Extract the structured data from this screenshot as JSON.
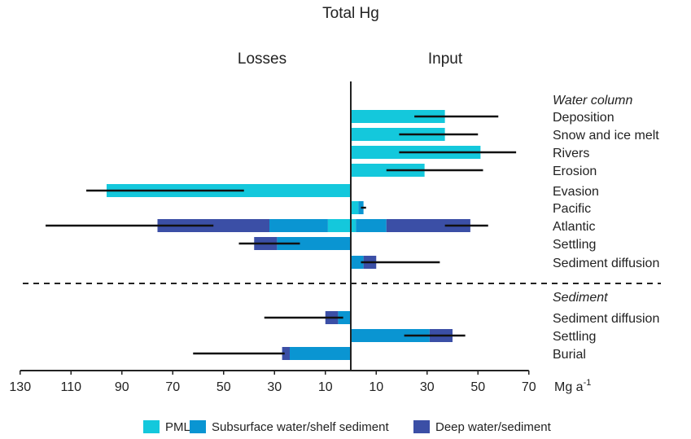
{
  "chart_data": {
    "type": "bar",
    "orientation": "horizontal-diverging",
    "title": "Total Hg",
    "left_label": "Losses",
    "right_label": "Input",
    "unit_label": "Mg a",
    "unit_superscript": "-1",
    "sections": [
      "Water column",
      "Sediment"
    ],
    "categories": [
      "Deposition",
      "Snow and ice melt",
      "Rivers",
      "Erosion",
      "Evasion",
      "Pacific",
      "Atlantic",
      "Settling",
      "Sediment diffusion",
      "Sediment diffusion",
      "Settling",
      "Burial"
    ],
    "category_section": [
      0,
      0,
      0,
      0,
      0,
      0,
      0,
      0,
      0,
      1,
      1,
      1
    ],
    "xlim": [
      -130,
      70
    ],
    "tick_values": [
      -130,
      -110,
      -90,
      -70,
      -50,
      -30,
      -10,
      10,
      30,
      50,
      70
    ],
    "tick_labels": [
      "130",
      "110",
      "90",
      "70",
      "50",
      "30",
      "10",
      "10",
      "30",
      "50",
      "70"
    ],
    "legend_position": "bottom",
    "colors": {
      "PML": "#14c8dc",
      "Subsurface water/shelf sediment": "#0a95d2",
      "Deep water/sediment": "#3b4fa6",
      "axis": "#222222",
      "error": "#111111"
    },
    "series": [
      {
        "name": "PML",
        "loss": [
          0,
          0,
          0,
          0,
          96,
          0,
          9,
          0,
          0,
          0,
          0,
          0
        ],
        "input": [
          37,
          37,
          51,
          29,
          0,
          3,
          2,
          0,
          0,
          0,
          0,
          0
        ]
      },
      {
        "name": "Subsurface water/shelf sediment",
        "loss": [
          0,
          0,
          0,
          0,
          0,
          0,
          23,
          29,
          0,
          5,
          0,
          24
        ],
        "input": [
          0,
          0,
          0,
          0,
          0,
          2,
          12,
          0,
          5,
          0,
          31,
          0
        ]
      },
      {
        "name": "Deep water/sediment",
        "loss": [
          0,
          0,
          0,
          0,
          0,
          0,
          44,
          9,
          0,
          5,
          0,
          3
        ],
        "input": [
          0,
          0,
          0,
          0,
          0,
          0,
          33,
          0,
          5,
          0,
          9,
          0
        ]
      }
    ],
    "error_bars": [
      {
        "category_index": 0,
        "low": 25,
        "high": 58
      },
      {
        "category_index": 1,
        "low": 19,
        "high": 50
      },
      {
        "category_index": 2,
        "low": 19,
        "high": 65
      },
      {
        "category_index": 3,
        "low": 14,
        "high": 52
      },
      {
        "category_index": 4,
        "low": -104,
        "high": -42
      },
      {
        "category_index": 5,
        "low": 4,
        "high": 6
      },
      {
        "category_index": 6,
        "low": -120,
        "high": -54
      },
      {
        "category_index": 6,
        "low": 37,
        "high": 54
      },
      {
        "category_index": 7,
        "low": -44,
        "high": -20
      },
      {
        "category_index": 8,
        "low": 4,
        "high": 35
      },
      {
        "category_index": 9,
        "low": -34,
        "high": -3
      },
      {
        "category_index": 10,
        "low": 21,
        "high": 45
      },
      {
        "category_index": 11,
        "low": -62,
        "high": -26
      }
    ]
  }
}
